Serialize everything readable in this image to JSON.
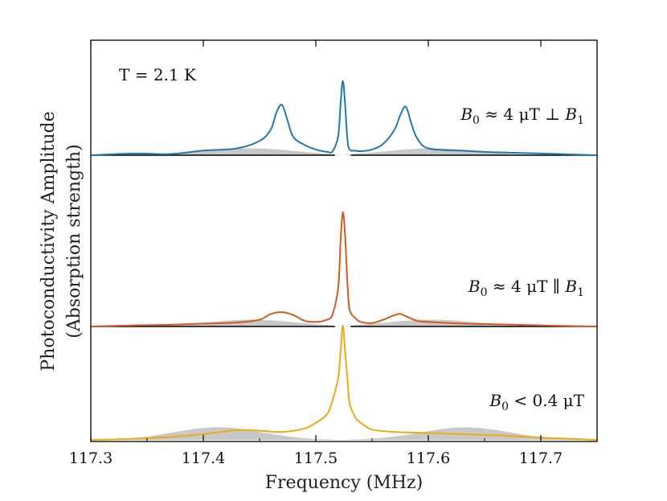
{
  "chart_data": {
    "type": "line",
    "xlabel": "Frequency (MHz)",
    "ylabel_line1": "Photoconductivity Amplitude",
    "ylabel_line2": "(Absorption strength)",
    "xlim": [
      117.3,
      117.75
    ],
    "x_ticks": [
      117.3,
      117.4,
      117.5,
      117.6,
      117.7
    ],
    "x_tick_labels": [
      "117.3",
      "117.4",
      "117.5",
      "117.6",
      "117.7"
    ],
    "annotations": {
      "temperature": "T = 2.1 K",
      "top": {
        "prefix": "B",
        "sub0": "0",
        "mid": " ≈ 4 μT ⊥ ",
        "suffix": "B",
        "sub1": "1"
      },
      "middle": {
        "prefix": "B",
        "sub0": "0",
        "mid": " ≈ 4 μT ∥ ",
        "suffix": "B",
        "sub1": "1"
      },
      "bottom": {
        "prefix": "B",
        "sub0": "0",
        "mid": " < 0.4 μT"
      }
    },
    "series": [
      {
        "color": "#1f77b4",
        "baseline_offset": 2.0,
        "x": [
          117.3,
          117.34,
          117.37,
          117.4,
          117.43,
          117.45,
          117.46,
          117.465,
          117.47,
          117.475,
          117.48,
          117.49,
          117.5,
          117.51,
          117.515,
          117.52,
          117.522,
          117.524,
          117.526,
          117.528,
          117.53,
          117.535,
          117.54,
          117.55,
          117.56,
          117.57,
          117.575,
          117.58,
          117.585,
          117.59,
          117.6,
          117.63,
          117.66,
          117.7,
          117.75
        ],
        "y": [
          0.0,
          0.03,
          0.02,
          0.08,
          0.12,
          0.25,
          0.45,
          0.75,
          0.88,
          0.6,
          0.32,
          0.18,
          0.1,
          0.06,
          0.07,
          0.35,
          0.9,
          1.3,
          0.9,
          0.3,
          0.1,
          0.08,
          0.07,
          0.1,
          0.2,
          0.45,
          0.7,
          0.85,
          0.55,
          0.3,
          0.12,
          0.08,
          0.05,
          0.03,
          0.0
        ]
      },
      {
        "color": "#d45a20",
        "baseline_offset": 1.0,
        "x": [
          117.3,
          117.34,
          117.37,
          117.4,
          117.43,
          117.45,
          117.46,
          117.47,
          117.48,
          117.49,
          117.5,
          117.51,
          117.515,
          117.52,
          117.522,
          117.524,
          117.526,
          117.528,
          117.53,
          117.535,
          117.54,
          117.55,
          117.56,
          117.57,
          117.575,
          117.58,
          117.59,
          117.6,
          117.63,
          117.66,
          117.7,
          117.75
        ],
        "y": [
          0.0,
          0.02,
          0.03,
          0.05,
          0.07,
          0.12,
          0.22,
          0.25,
          0.2,
          0.1,
          0.08,
          0.12,
          0.22,
          0.7,
          1.5,
          2.0,
          1.6,
          0.8,
          0.3,
          0.15,
          0.08,
          0.06,
          0.12,
          0.2,
          0.22,
          0.18,
          0.1,
          0.08,
          0.05,
          0.04,
          0.02,
          0.0
        ]
      },
      {
        "color": "#f0a818",
        "baseline_offset": 0.0,
        "x": [
          117.3,
          117.34,
          117.37,
          117.4,
          117.43,
          117.45,
          117.47,
          117.49,
          117.5,
          117.51,
          117.515,
          117.52,
          117.522,
          117.524,
          117.526,
          117.528,
          117.53,
          117.535,
          117.54,
          117.55,
          117.57,
          117.6,
          117.63,
          117.66,
          117.7,
          117.75
        ],
        "y": [
          0.0,
          0.02,
          0.05,
          0.1,
          0.17,
          0.16,
          0.14,
          0.2,
          0.3,
          0.45,
          0.7,
          1.1,
          1.55,
          2.0,
          1.55,
          1.1,
          0.65,
          0.4,
          0.3,
          0.18,
          0.14,
          0.12,
          0.1,
          0.08,
          0.04,
          0.0
        ]
      }
    ]
  }
}
